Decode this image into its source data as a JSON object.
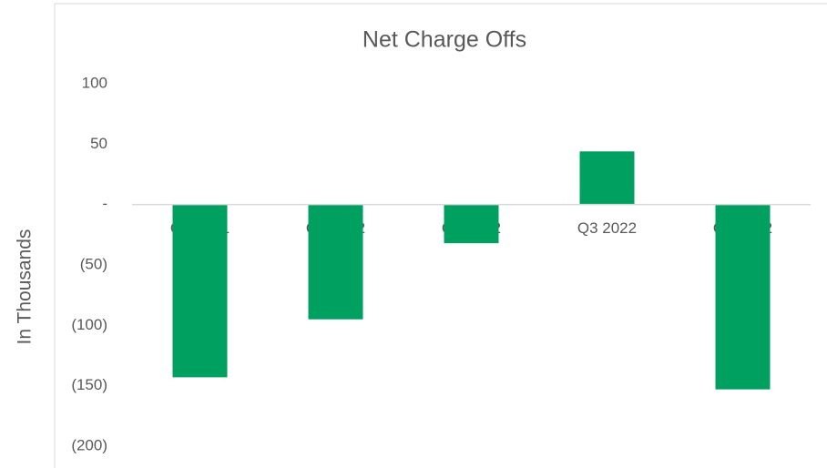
{
  "chart_data": {
    "type": "bar",
    "title": "Net Charge Offs",
    "ylabel": "In Thousands",
    "categories": [
      "Q4 2021",
      "Q1 2022",
      "Q2 2022",
      "Q3 2022",
      "Q4 2022"
    ],
    "values": [
      -143,
      -95,
      -32,
      44,
      -153
    ],
    "color": "#00a160",
    "ylim": [
      -200,
      100
    ],
    "yticks": [
      100,
      50,
      {
        "value": 0,
        "label": "-"
      },
      {
        "value": -50,
        "label": "(50)"
      },
      {
        "value": -100,
        "label": "(100)"
      },
      {
        "value": -150,
        "label": "(150)"
      },
      {
        "value": -200,
        "label": "(200)"
      }
    ],
    "grid": false
  }
}
